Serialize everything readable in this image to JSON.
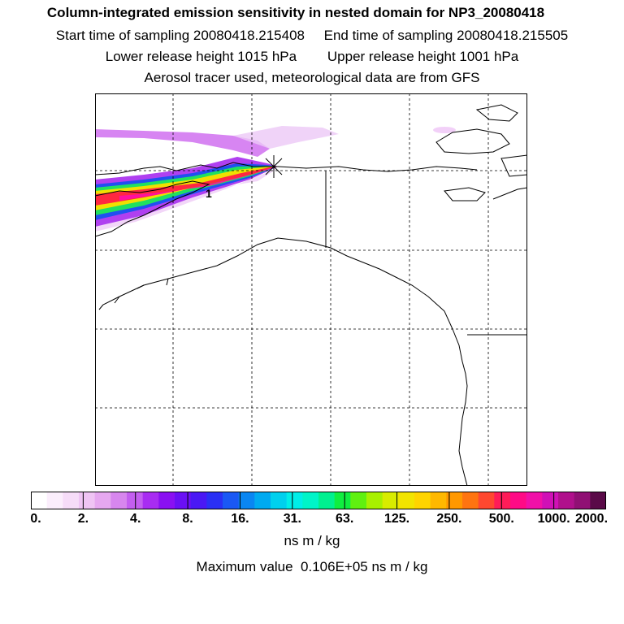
{
  "header": {
    "title": "Column-integrated emission sensitivity in nested domain for NP3_20080418",
    "start_label": "Start time of sampling 20080418.215408",
    "end_label": "End time of sampling 20080418.215505",
    "lower_label": "Lower release height 1015 hPa",
    "upper_label": "Upper release height 1001 hPa",
    "tracer_line": "Aerosol tracer used, meteorological data are from GFS"
  },
  "map": {
    "plume_label": "1",
    "colors": {
      "land_outline": "#000000",
      "grid": "#000000",
      "frame": "#000000"
    }
  },
  "colorbar": {
    "colors": [
      "#ffffff",
      "#fbeefc",
      "#f6dcf8",
      "#efc4f4",
      "#e6a8f0",
      "#d786ee",
      "#c35ef0",
      "#a82cf2",
      "#8a10f2",
      "#6a10f4",
      "#4a18f4",
      "#2a30f4",
      "#1a58f4",
      "#0a86f2",
      "#00aaf0",
      "#00d0ee",
      "#00eee8",
      "#00f4c8",
      "#00f090",
      "#10ee40",
      "#60f010",
      "#a8f000",
      "#d8ec00",
      "#f2e400",
      "#ffd400",
      "#ffb800",
      "#ff9800",
      "#ff7410",
      "#ff4830",
      "#ff1c58",
      "#ff0a86",
      "#f010a8",
      "#d010b6",
      "#b0108c",
      "#901074",
      "#5a0a48"
    ],
    "tick_labels": [
      "0.",
      "2.",
      "4.",
      "8.",
      "16.",
      "31.",
      "63.",
      "125.",
      "250.",
      "500.",
      "1000.",
      "2000."
    ],
    "units": "ns m / kg"
  },
  "footer": {
    "max_value": "Maximum value  0.106E+05 ns m / kg"
  }
}
